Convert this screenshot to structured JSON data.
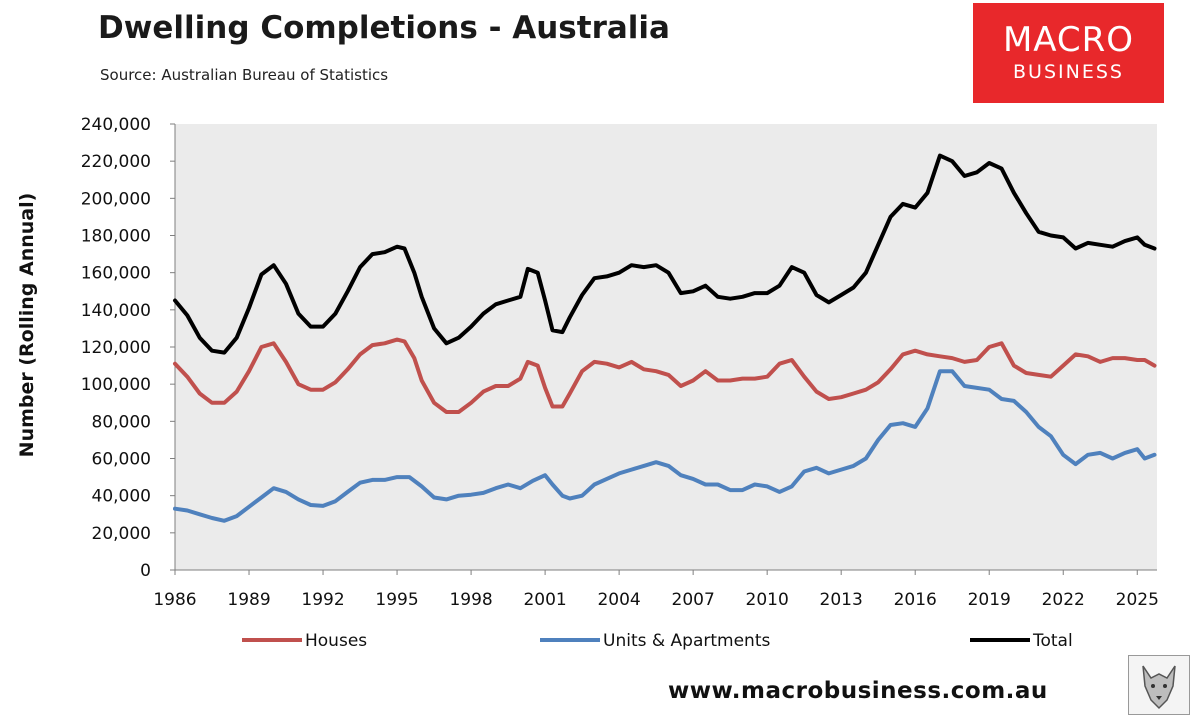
{
  "header": {
    "title": "Dwelling Completions - Australia",
    "subtitle": "Source: Australian Bureau of Statistics"
  },
  "logo": {
    "line1": "MACRO",
    "line2": "BUSINESS",
    "color": "#e8282b"
  },
  "footer": {
    "url": "www.macrobusiness.com.au",
    "icon": "wolf-icon"
  },
  "chart_data": {
    "type": "line",
    "title": "Dwelling Completions - Australia",
    "ylabel": "Number (Rolling Annual)",
    "xlabel": "",
    "ylim": [
      0,
      240000
    ],
    "xlim": [
      1986,
      2025.8
    ],
    "yticks": [
      0,
      20000,
      40000,
      60000,
      80000,
      100000,
      120000,
      140000,
      160000,
      180000,
      200000,
      220000,
      240000
    ],
    "ytick_labels": [
      "0",
      "20,000",
      "40,000",
      "60,000",
      "80,000",
      "100,000",
      "120,000",
      "140,000",
      "160,000",
      "180,000",
      "200,000",
      "220,000",
      "240,000"
    ],
    "xticks": [
      1986,
      1989,
      1992,
      1995,
      1998,
      2001,
      2004,
      2007,
      2010,
      2013,
      2016,
      2019,
      2022,
      2025
    ],
    "xtick_labels": [
      "1986",
      "1989",
      "1992",
      "1995",
      "1998",
      "2001",
      "2004",
      "2007",
      "2010",
      "2013",
      "2016",
      "2019",
      "2022",
      "2025"
    ],
    "grid": false,
    "plot_background": "#ebebeb",
    "legend_position": "bottom",
    "series": [
      {
        "name": "Houses",
        "color": "#c0504d",
        "points": [
          [
            1986,
            111000
          ],
          [
            1986.5,
            104000
          ],
          [
            1987,
            95000
          ],
          [
            1987.5,
            90000
          ],
          [
            1988,
            90000
          ],
          [
            1988.5,
            96000
          ],
          [
            1989,
            107000
          ],
          [
            1989.5,
            120000
          ],
          [
            1990,
            122000
          ],
          [
            1990.5,
            112000
          ],
          [
            1991,
            100000
          ],
          [
            1991.5,
            97000
          ],
          [
            1992,
            97000
          ],
          [
            1992.5,
            101000
          ],
          [
            1993,
            108000
          ],
          [
            1993.5,
            116000
          ],
          [
            1994,
            121000
          ],
          [
            1994.5,
            122000
          ],
          [
            1995,
            124000
          ],
          [
            1995.3,
            123000
          ],
          [
            1995.7,
            114000
          ],
          [
            1996,
            102000
          ],
          [
            1996.5,
            90000
          ],
          [
            1997,
            85000
          ],
          [
            1997.5,
            85000
          ],
          [
            1998,
            90000
          ],
          [
            1998.5,
            96000
          ],
          [
            1999,
            99000
          ],
          [
            1999.5,
            99000
          ],
          [
            2000,
            103000
          ],
          [
            2000.3,
            112000
          ],
          [
            2000.7,
            110000
          ],
          [
            2001,
            98000
          ],
          [
            2001.3,
            88000
          ],
          [
            2001.7,
            88000
          ],
          [
            2002,
            95000
          ],
          [
            2002.5,
            107000
          ],
          [
            2003,
            112000
          ],
          [
            2003.5,
            111000
          ],
          [
            2004,
            109000
          ],
          [
            2004.5,
            112000
          ],
          [
            2005,
            108000
          ],
          [
            2005.5,
            107000
          ],
          [
            2006,
            105000
          ],
          [
            2006.5,
            99000
          ],
          [
            2007,
            102000
          ],
          [
            2007.5,
            107000
          ],
          [
            2008,
            102000
          ],
          [
            2008.5,
            102000
          ],
          [
            2009,
            103000
          ],
          [
            2009.5,
            103000
          ],
          [
            2010,
            104000
          ],
          [
            2010.5,
            111000
          ],
          [
            2011,
            113000
          ],
          [
            2011.5,
            104000
          ],
          [
            2012,
            96000
          ],
          [
            2012.5,
            92000
          ],
          [
            2013,
            93000
          ],
          [
            2013.5,
            95000
          ],
          [
            2014,
            97000
          ],
          [
            2014.5,
            101000
          ],
          [
            2015,
            108000
          ],
          [
            2015.5,
            116000
          ],
          [
            2016,
            118000
          ],
          [
            2016.5,
            116000
          ],
          [
            2017,
            115000
          ],
          [
            2017.5,
            114000
          ],
          [
            2018,
            112000
          ],
          [
            2018.5,
            113000
          ],
          [
            2019,
            120000
          ],
          [
            2019.5,
            122000
          ],
          [
            2020,
            110000
          ],
          [
            2020.5,
            106000
          ],
          [
            2021,
            105000
          ],
          [
            2021.5,
            104000
          ],
          [
            2022,
            110000
          ],
          [
            2022.5,
            116000
          ],
          [
            2023,
            115000
          ],
          [
            2023.5,
            112000
          ],
          [
            2024,
            114000
          ],
          [
            2024.5,
            114000
          ],
          [
            2025,
            113000
          ],
          [
            2025.3,
            113000
          ],
          [
            2025.7,
            110000
          ]
        ]
      },
      {
        "name": "Units & Apartments",
        "color": "#4f81bd",
        "points": [
          [
            1986,
            33000
          ],
          [
            1986.5,
            32000
          ],
          [
            1987,
            30000
          ],
          [
            1987.5,
            28000
          ],
          [
            1988,
            26500
          ],
          [
            1988.5,
            29000
          ],
          [
            1989,
            34000
          ],
          [
            1989.5,
            39000
          ],
          [
            1990,
            44000
          ],
          [
            1990.5,
            42000
          ],
          [
            1991,
            38000
          ],
          [
            1991.5,
            35000
          ],
          [
            1992,
            34500
          ],
          [
            1992.5,
            37000
          ],
          [
            1993,
            42000
          ],
          [
            1993.5,
            47000
          ],
          [
            1994,
            48500
          ],
          [
            1994.5,
            48500
          ],
          [
            1995,
            50000
          ],
          [
            1995.5,
            50000
          ],
          [
            1996,
            45000
          ],
          [
            1996.5,
            39000
          ],
          [
            1997,
            38000
          ],
          [
            1997.5,
            40000
          ],
          [
            1998,
            40500
          ],
          [
            1998.5,
            41500
          ],
          [
            1999,
            44000
          ],
          [
            1999.5,
            46000
          ],
          [
            2000,
            44000
          ],
          [
            2000.5,
            48000
          ],
          [
            2001,
            51000
          ],
          [
            2001.3,
            46000
          ],
          [
            2001.7,
            40000
          ],
          [
            2002,
            38500
          ],
          [
            2002.5,
            40000
          ],
          [
            2003,
            46000
          ],
          [
            2003.5,
            49000
          ],
          [
            2004,
            52000
          ],
          [
            2004.5,
            54000
          ],
          [
            2005,
            56000
          ],
          [
            2005.5,
            58000
          ],
          [
            2006,
            56000
          ],
          [
            2006.5,
            51000
          ],
          [
            2007,
            49000
          ],
          [
            2007.5,
            46000
          ],
          [
            2008,
            46000
          ],
          [
            2008.5,
            43000
          ],
          [
            2009,
            43000
          ],
          [
            2009.5,
            46000
          ],
          [
            2010,
            45000
          ],
          [
            2010.5,
            42000
          ],
          [
            2011,
            45000
          ],
          [
            2011.5,
            53000
          ],
          [
            2012,
            55000
          ],
          [
            2012.5,
            52000
          ],
          [
            2013,
            54000
          ],
          [
            2013.5,
            56000
          ],
          [
            2014,
            60000
          ],
          [
            2014.5,
            70000
          ],
          [
            2015,
            78000
          ],
          [
            2015.5,
            79000
          ],
          [
            2016,
            77000
          ],
          [
            2016.5,
            87000
          ],
          [
            2017,
            107000
          ],
          [
            2017.5,
            107000
          ],
          [
            2018,
            99000
          ],
          [
            2018.5,
            98000
          ],
          [
            2019,
            97000
          ],
          [
            2019.5,
            92000
          ],
          [
            2020,
            91000
          ],
          [
            2020.5,
            85000
          ],
          [
            2021,
            77000
          ],
          [
            2021.5,
            72000
          ],
          [
            2022,
            62000
          ],
          [
            2022.5,
            57000
          ],
          [
            2023,
            62000
          ],
          [
            2023.5,
            63000
          ],
          [
            2024,
            60000
          ],
          [
            2024.5,
            63000
          ],
          [
            2025,
            65000
          ],
          [
            2025.3,
            60000
          ],
          [
            2025.7,
            62000
          ]
        ]
      },
      {
        "name": "Total",
        "color": "#000000",
        "points": [
          [
            1986,
            145000
          ],
          [
            1986.5,
            137000
          ],
          [
            1987,
            125000
          ],
          [
            1987.5,
            118000
          ],
          [
            1988,
            117000
          ],
          [
            1988.5,
            125000
          ],
          [
            1989,
            141000
          ],
          [
            1989.5,
            159000
          ],
          [
            1990,
            164000
          ],
          [
            1990.5,
            154000
          ],
          [
            1991,
            138000
          ],
          [
            1991.5,
            131000
          ],
          [
            1992,
            131000
          ],
          [
            1992.5,
            138000
          ],
          [
            1993,
            150000
          ],
          [
            1993.5,
            163000
          ],
          [
            1994,
            170000
          ],
          [
            1994.5,
            171000
          ],
          [
            1995,
            174000
          ],
          [
            1995.3,
            173000
          ],
          [
            1995.7,
            160000
          ],
          [
            1996,
            147000
          ],
          [
            1996.5,
            130000
          ],
          [
            1997,
            122000
          ],
          [
            1997.5,
            125000
          ],
          [
            1998,
            131000
          ],
          [
            1998.5,
            138000
          ],
          [
            1999,
            143000
          ],
          [
            1999.5,
            145000
          ],
          [
            2000,
            147000
          ],
          [
            2000.3,
            162000
          ],
          [
            2000.7,
            160000
          ],
          [
            2001,
            145000
          ],
          [
            2001.3,
            129000
          ],
          [
            2001.7,
            128000
          ],
          [
            2002,
            136000
          ],
          [
            2002.5,
            148000
          ],
          [
            2003,
            157000
          ],
          [
            2003.5,
            158000
          ],
          [
            2004,
            160000
          ],
          [
            2004.5,
            164000
          ],
          [
            2005,
            163000
          ],
          [
            2005.5,
            164000
          ],
          [
            2006,
            160000
          ],
          [
            2006.5,
            149000
          ],
          [
            2007,
            150000
          ],
          [
            2007.5,
            153000
          ],
          [
            2008,
            147000
          ],
          [
            2008.5,
            146000
          ],
          [
            2009,
            147000
          ],
          [
            2009.5,
            149000
          ],
          [
            2010,
            149000
          ],
          [
            2010.5,
            153000
          ],
          [
            2011,
            163000
          ],
          [
            2011.5,
            160000
          ],
          [
            2012,
            148000
          ],
          [
            2012.5,
            144000
          ],
          [
            2013,
            148000
          ],
          [
            2013.5,
            152000
          ],
          [
            2014,
            160000
          ],
          [
            2014.5,
            175000
          ],
          [
            2015,
            190000
          ],
          [
            2015.5,
            197000
          ],
          [
            2016,
            195000
          ],
          [
            2016.5,
            203000
          ],
          [
            2017,
            223000
          ],
          [
            2017.5,
            220000
          ],
          [
            2018,
            212000
          ],
          [
            2018.5,
            214000
          ],
          [
            2019,
            219000
          ],
          [
            2019.5,
            216000
          ],
          [
            2020,
            203000
          ],
          [
            2020.5,
            192000
          ],
          [
            2021,
            182000
          ],
          [
            2021.5,
            180000
          ],
          [
            2022,
            179000
          ],
          [
            2022.5,
            173000
          ],
          [
            2023,
            176000
          ],
          [
            2023.5,
            175000
          ],
          [
            2024,
            174000
          ],
          [
            2024.5,
            177000
          ],
          [
            2025,
            179000
          ],
          [
            2025.3,
            175000
          ],
          [
            2025.7,
            173000
          ]
        ]
      }
    ]
  }
}
